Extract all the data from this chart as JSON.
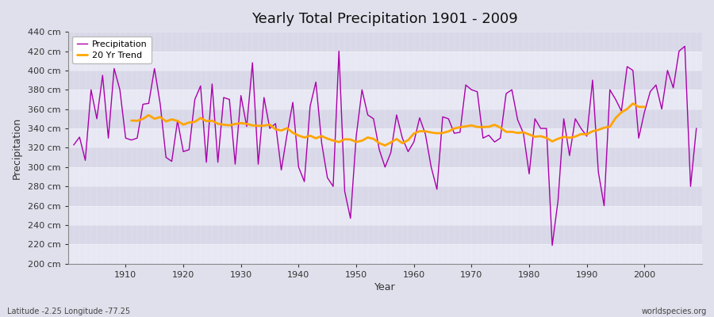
{
  "title": "Yearly Total Precipitation 1901 - 2009",
  "xlabel": "Year",
  "ylabel": "Precipitation",
  "subtitle": "Latitude -2.25 Longitude -77.25",
  "watermark": "worldspecies.org",
  "ylim": [
    200,
    440
  ],
  "ytick_step": 20,
  "line_color": "#aa00aa",
  "trend_color": "#FFA500",
  "bg_color": "#E0E0EC",
  "band_light": "#E8E8F4",
  "band_dark": "#D8D8E8",
  "grid_color": "#ffffff",
  "years": [
    1901,
    1902,
    1903,
    1904,
    1905,
    1906,
    1907,
    1908,
    1909,
    1910,
    1911,
    1912,
    1913,
    1914,
    1915,
    1916,
    1917,
    1918,
    1919,
    1920,
    1921,
    1922,
    1923,
    1924,
    1925,
    1926,
    1927,
    1928,
    1929,
    1930,
    1931,
    1932,
    1933,
    1934,
    1935,
    1936,
    1937,
    1938,
    1939,
    1940,
    1941,
    1942,
    1943,
    1944,
    1945,
    1946,
    1947,
    1948,
    1949,
    1950,
    1951,
    1952,
    1953,
    1954,
    1955,
    1956,
    1957,
    1958,
    1959,
    1960,
    1961,
    1962,
    1963,
    1964,
    1965,
    1966,
    1967,
    1968,
    1969,
    1970,
    1971,
    1972,
    1973,
    1974,
    1975,
    1976,
    1977,
    1978,
    1979,
    1980,
    1981,
    1982,
    1983,
    1984,
    1985,
    1986,
    1987,
    1988,
    1989,
    1990,
    1991,
    1992,
    1993,
    1994,
    1995,
    1996,
    1997,
    1998,
    1999,
    2000,
    2001,
    2002,
    2003,
    2004,
    2005,
    2006,
    2007,
    2008,
    2009
  ],
  "precip": [
    323,
    331,
    307,
    380,
    350,
    395,
    330,
    402,
    380,
    330,
    328,
    330,
    365,
    366,
    402,
    365,
    310,
    306,
    348,
    316,
    318,
    370,
    384,
    305,
    386,
    305,
    372,
    370,
    303,
    374,
    342,
    408,
    303,
    372,
    340,
    345,
    297,
    334,
    367,
    300,
    285,
    363,
    388,
    325,
    289,
    280,
    420,
    275,
    247,
    332,
    380,
    354,
    350,
    318,
    300,
    315,
    354,
    330,
    316,
    326,
    351,
    334,
    300,
    277,
    352,
    350,
    335,
    336,
    385,
    380,
    378,
    330,
    333,
    326,
    330,
    376,
    380,
    349,
    335,
    293,
    350,
    340,
    340,
    219,
    265,
    350,
    312,
    350,
    340,
    332,
    390,
    295,
    260,
    380,
    370,
    358,
    404,
    400,
    330,
    357,
    378,
    385,
    360,
    400,
    382,
    420,
    425,
    280,
    340
  ]
}
